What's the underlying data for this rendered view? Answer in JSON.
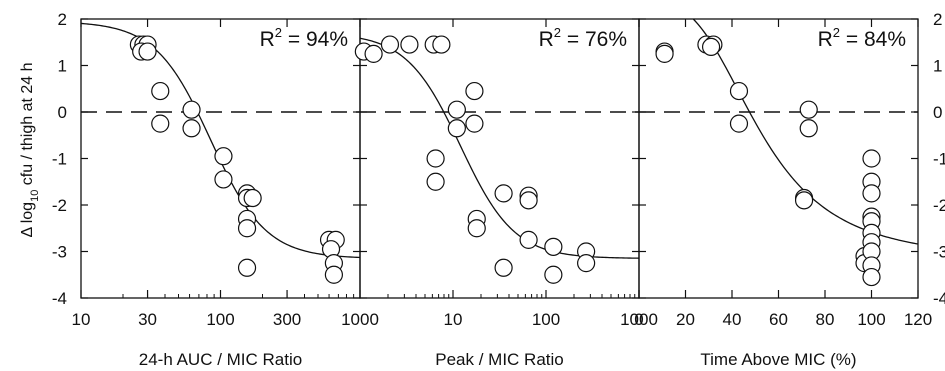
{
  "ylabel_parts": {
    "prefix": "Δ log",
    "sub": "10",
    "suffix": " cfu / thigh at 24 h"
  },
  "chart_data": [
    {
      "type": "scatter",
      "xscale": "log",
      "xlim": [
        10,
        1000
      ],
      "ylim": [
        -4,
        2
      ],
      "xticks": [
        10,
        30,
        100,
        300,
        1000
      ],
      "xtick_labels": [
        "10",
        "30",
        "100",
        "300",
        "1000"
      ],
      "yticks": [
        -4,
        -3,
        -2,
        -1,
        0,
        1,
        2
      ],
      "ytick_labels": [
        "-4",
        "-3",
        "-2",
        "-1",
        "0",
        "1",
        "2"
      ],
      "show_left_ytick_labels": true,
      "show_right_ytick_labels": false,
      "xlabel": "24-h AUC / MIC Ratio",
      "annotation": {
        "prefix": "R",
        "sup": "2",
        "suffix": " = 94%"
      },
      "reference_line_y": 0,
      "points": [
        {
          "x": 26,
          "y": 1.45
        },
        {
          "x": 28,
          "y": 1.45
        },
        {
          "x": 30,
          "y": 1.45
        },
        {
          "x": 27,
          "y": 1.3
        },
        {
          "x": 30,
          "y": 1.3
        },
        {
          "x": 37,
          "y": 0.45
        },
        {
          "x": 37,
          "y": -0.25
        },
        {
          "x": 62,
          "y": 0.05
        },
        {
          "x": 62,
          "y": -0.35
        },
        {
          "x": 105,
          "y": -0.95
        },
        {
          "x": 105,
          "y": -1.45
        },
        {
          "x": 155,
          "y": -1.75
        },
        {
          "x": 155,
          "y": -1.85
        },
        {
          "x": 155,
          "y": -2.3
        },
        {
          "x": 155,
          "y": -2.5
        },
        {
          "x": 170,
          "y": -1.85
        },
        {
          "x": 155,
          "y": -3.35
        },
        {
          "x": 600,
          "y": -2.75
        },
        {
          "x": 670,
          "y": -2.75
        },
        {
          "x": 620,
          "y": -2.95
        },
        {
          "x": 650,
          "y": -3.25
        },
        {
          "x": 650,
          "y": -3.5
        }
      ],
      "curve": {
        "top": 1.95,
        "bottom": -3.15,
        "x50": 85,
        "hill": 2.2
      }
    },
    {
      "type": "scatter",
      "xscale": "log",
      "xlim": [
        1,
        1000
      ],
      "ylim": [
        -4,
        2
      ],
      "xticks": [
        10,
        100,
        1000
      ],
      "xtick_labels": [
        "10",
        "100",
        "1000"
      ],
      "yticks": [
        -4,
        -3,
        -2,
        -1,
        0,
        1,
        2
      ],
      "ytick_labels": [
        "-4",
        "-3",
        "-2",
        "-1",
        "0",
        "1",
        "2"
      ],
      "show_left_ytick_labels": false,
      "show_right_ytick_labels": false,
      "xlabel": "Peak / MIC Ratio",
      "annotation": {
        "prefix": "R",
        "sup": "2",
        "suffix": " = 76%"
      },
      "reference_line_y": 0,
      "points": [
        {
          "x": 1.1,
          "y": 1.3
        },
        {
          "x": 1.4,
          "y": 1.25
        },
        {
          "x": 2.1,
          "y": 1.45
        },
        {
          "x": 3.4,
          "y": 1.45
        },
        {
          "x": 6.2,
          "y": 1.45
        },
        {
          "x": 7.5,
          "y": 1.45
        },
        {
          "x": 6.5,
          "y": -1.0
        },
        {
          "x": 6.5,
          "y": -1.5
        },
        {
          "x": 11,
          "y": 0.05
        },
        {
          "x": 11,
          "y": -0.35
        },
        {
          "x": 17,
          "y": 0.45
        },
        {
          "x": 17,
          "y": -0.25
        },
        {
          "x": 18,
          "y": -2.3
        },
        {
          "x": 18,
          "y": -2.5
        },
        {
          "x": 35,
          "y": -1.75
        },
        {
          "x": 35,
          "y": -3.35
        },
        {
          "x": 65,
          "y": -1.8
        },
        {
          "x": 65,
          "y": -1.9
        },
        {
          "x": 65,
          "y": -2.75
        },
        {
          "x": 120,
          "y": -2.9
        },
        {
          "x": 120,
          "y": -3.5
        },
        {
          "x": 270,
          "y": -3.0
        },
        {
          "x": 270,
          "y": -3.25
        }
      ],
      "curve": {
        "top": 1.7,
        "bottom": -3.15,
        "x50": 12,
        "hill": 1.5
      }
    },
    {
      "type": "scatter",
      "xscale": "linear",
      "xlim": [
        0,
        120
      ],
      "ylim": [
        -4,
        2
      ],
      "xticks": [
        0,
        20,
        40,
        60,
        80,
        100,
        120
      ],
      "xtick_labels": [
        "0",
        "20",
        "40",
        "60",
        "80",
        "100",
        "120"
      ],
      "yticks": [
        -4,
        -3,
        -2,
        -1,
        0,
        1,
        2
      ],
      "ytick_labels": [
        "-4",
        "-3",
        "-2",
        "-1",
        "0",
        "1",
        "2"
      ],
      "show_left_ytick_labels": false,
      "show_right_ytick_labels": true,
      "xlabel": "Time Above MIC (%)",
      "annotation": {
        "prefix": "R",
        "sup": "2",
        "suffix": " = 84%"
      },
      "reference_line_y": 0,
      "points": [
        {
          "x": 11,
          "y": 1.3
        },
        {
          "x": 11,
          "y": 1.25
        },
        {
          "x": 29,
          "y": 1.45
        },
        {
          "x": 32,
          "y": 1.45
        },
        {
          "x": 31,
          "y": 1.4
        },
        {
          "x": 43,
          "y": 0.45
        },
        {
          "x": 43,
          "y": -0.25
        },
        {
          "x": 71,
          "y": -1.85
        },
        {
          "x": 71,
          "y": -1.9
        },
        {
          "x": 73,
          "y": 0.05
        },
        {
          "x": 73,
          "y": -0.35
        },
        {
          "x": 97,
          "y": -3.1
        },
        {
          "x": 97,
          "y": -3.25
        },
        {
          "x": 100,
          "y": -1.0
        },
        {
          "x": 100,
          "y": -1.5
        },
        {
          "x": 100,
          "y": -1.75
        },
        {
          "x": 100,
          "y": -2.25
        },
        {
          "x": 100,
          "y": -2.35
        },
        {
          "x": 100,
          "y": -2.6
        },
        {
          "x": 100,
          "y": -2.8
        },
        {
          "x": 100,
          "y": -3.0
        },
        {
          "x": 100,
          "y": -3.3
        },
        {
          "x": 100,
          "y": -3.55
        }
      ],
      "curve": {
        "top": 2.4,
        "bottom": -3.2,
        "x50": 52,
        "hill": 3.2
      }
    }
  ]
}
